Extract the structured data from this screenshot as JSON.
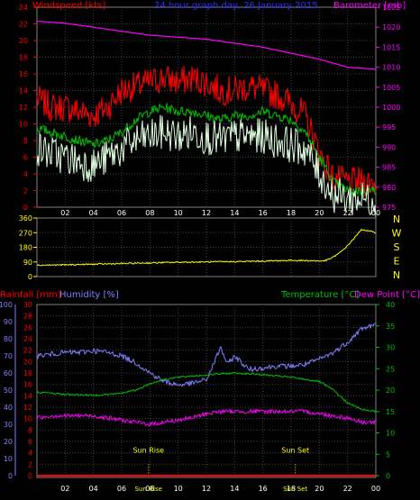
{
  "chart_data": [
    {
      "type": "line",
      "title": "24 hour graph day, 26 January 2015",
      "x_tick_labels": [
        "02",
        "04",
        "06",
        "08",
        "10",
        "12",
        "14",
        "16",
        "18",
        "20",
        "22",
        "00"
      ],
      "x_range_hours": [
        0,
        24
      ],
      "left_axis": {
        "label": "Windspeed [kts]",
        "ylim": [
          0,
          24
        ],
        "ticks": [
          0,
          2,
          4,
          6,
          8,
          10,
          12,
          14,
          16,
          18,
          20,
          22,
          24
        ]
      },
      "right_axis": {
        "label": "Barometer [mb]",
        "ylim": [
          975,
          1025
        ],
        "ticks": [
          975,
          980,
          985,
          990,
          995,
          1000,
          1005,
          1010,
          1015,
          1020,
          1025
        ]
      },
      "grid": true,
      "series": [
        {
          "name": "Windspeed [kts]",
          "color": "#ff0000",
          "axis": "left",
          "noise": 1.8,
          "x": [
            0,
            1,
            2,
            3,
            4,
            5,
            6,
            7,
            8,
            9,
            10,
            11,
            12,
            13,
            14,
            15,
            16,
            17,
            18,
            19,
            20,
            21,
            22,
            23,
            24
          ],
          "y": [
            13,
            12,
            12,
            11.5,
            11,
            12,
            14,
            14.5,
            15,
            15.5,
            15,
            15.5,
            15,
            14,
            14,
            14.5,
            14,
            13.5,
            12.5,
            11,
            6.5,
            3.5,
            3,
            3,
            3
          ]
        },
        {
          "color": "#00c000",
          "axis": "left",
          "noise": 0.6,
          "x": [
            0,
            1,
            2,
            3,
            4,
            5,
            6,
            7,
            8,
            9,
            10,
            11,
            12,
            13,
            14,
            15,
            16,
            17,
            18,
            19,
            20,
            21,
            22,
            23,
            24
          ],
          "y": [
            9.5,
            9,
            8.5,
            8,
            7.5,
            8,
            9,
            10.5,
            11.5,
            12,
            11.5,
            11.5,
            11,
            10.5,
            11,
            11,
            11.5,
            11,
            10.5,
            9,
            6,
            3,
            2,
            2,
            2
          ]
        },
        {
          "color": "#e0ffe0",
          "axis": "left",
          "noise": 2.2,
          "x": [
            0,
            1,
            2,
            3,
            4,
            5,
            6,
            7,
            8,
            9,
            10,
            11,
            12,
            13,
            14,
            15,
            16,
            17,
            18,
            19,
            20,
            21,
            22,
            23,
            24
          ],
          "y": [
            7,
            6.5,
            6,
            5.5,
            5,
            6,
            7,
            8,
            8.5,
            9,
            8.5,
            9,
            8.5,
            8,
            8.5,
            8.5,
            8.5,
            8,
            7.5,
            7,
            4,
            1.5,
            1,
            1,
            1
          ]
        },
        {
          "name": "Barometer [mb]",
          "color": "#ff00ff",
          "axis": "right",
          "noise": 0,
          "x": [
            0,
            2,
            4,
            6,
            8,
            10,
            12,
            14,
            16,
            18,
            20,
            22,
            24
          ],
          "y": [
            1021.5,
            1021,
            1020,
            1019,
            1018,
            1017.5,
            1017,
            1016,
            1015,
            1013.5,
            1012,
            1010,
            1009.5
          ]
        }
      ]
    },
    {
      "type": "line",
      "left_axis": {
        "ylim": [
          0,
          360
        ],
        "ticks": [
          0,
          90,
          180,
          270,
          360
        ]
      },
      "compass_labels": [
        "N",
        "W",
        "S",
        "E",
        "N"
      ],
      "grid": true,
      "series": [
        {
          "color": "#ffff00",
          "noise": 4,
          "x": [
            0,
            2,
            4,
            6,
            8,
            10,
            12,
            14,
            16,
            18,
            19.5,
            20,
            20.5,
            21,
            21.5,
            22,
            22.5,
            23,
            24
          ],
          "y": [
            70,
            72,
            76,
            80,
            84,
            88,
            90,
            92,
            95,
            100,
            98,
            95,
            100,
            120,
            150,
            190,
            240,
            290,
            270
          ]
        }
      ]
    },
    {
      "type": "line",
      "left_axis_rain": {
        "label": "Rainfall [mm]",
        "ylim": [
          0,
          30
        ],
        "ticks": [
          0,
          2,
          4,
          6,
          8,
          10,
          12,
          14,
          16,
          18,
          20,
          22,
          24,
          26,
          28,
          30
        ]
      },
      "left_axis_humidity": {
        "label": "Humidity [%]",
        "ylim": [
          0,
          100
        ],
        "ticks": [
          0,
          10,
          20,
          30,
          40,
          50,
          60,
          70,
          80,
          90,
          100
        ]
      },
      "right_axis": {
        "label": "Temperature [°C]",
        "label2": "Dew Point [°C]",
        "ylim": [
          0,
          40
        ],
        "ticks": [
          0,
          5,
          10,
          15,
          20,
          25,
          30,
          35,
          40
        ]
      },
      "annotations": [
        {
          "text": "Sun Rise",
          "x_hour": 7.9
        },
        {
          "text": "Sun Set",
          "x_hour": 18.3
        }
      ],
      "grid": true,
      "series": [
        {
          "name": "Humidity [%]",
          "color": "#8080ff",
          "axis": "humidity",
          "noise": 1.5,
          "x": [
            0,
            1,
            2,
            3,
            4,
            5,
            6,
            7,
            8,
            9,
            10,
            11,
            12,
            12.5,
            13,
            13.5,
            14,
            14.5,
            15,
            16,
            17,
            18,
            19,
            20,
            21,
            22,
            23,
            24
          ],
          "y": [
            70,
            71,
            72,
            72,
            73,
            72,
            70,
            66,
            60,
            55,
            53,
            54,
            56,
            65,
            75,
            65,
            70,
            66,
            62,
            63,
            64,
            64,
            65,
            68,
            72,
            78,
            86,
            88
          ]
        },
        {
          "name": "Temperature [°C]",
          "color": "#00c000",
          "axis": "temp",
          "noise": 0.2,
          "x": [
            0,
            1,
            2,
            3,
            4,
            5,
            6,
            7,
            8,
            9,
            10,
            11,
            12,
            13,
            14,
            15,
            16,
            17,
            18,
            19,
            20,
            21,
            22,
            23,
            24
          ],
          "y": [
            19.5,
            19.3,
            19,
            18.9,
            18.8,
            19,
            19.3,
            20,
            21.5,
            22.5,
            23,
            23.3,
            23.5,
            23.8,
            24,
            23.8,
            23.6,
            23.3,
            23,
            22.5,
            22,
            20,
            17,
            15.5,
            15
          ]
        },
        {
          "name": "Dew Point [°C]",
          "color": "#ff00ff",
          "axis": "temp",
          "noise": 0.5,
          "x": [
            0,
            1,
            2,
            3,
            4,
            5,
            6,
            7,
            8,
            9,
            10,
            11,
            12,
            13,
            14,
            15,
            16,
            17,
            18,
            19,
            20,
            21,
            22,
            23,
            24
          ],
          "y": [
            13.5,
            14,
            14,
            14,
            14,
            13.5,
            13,
            12.5,
            12,
            12.5,
            13,
            13.5,
            14.5,
            15,
            15,
            15,
            15,
            15,
            15,
            15,
            14.5,
            14,
            13.5,
            12.5,
            12.5
          ]
        },
        {
          "name": "Rainfall [mm]",
          "color": "#ff0000",
          "axis": "rain",
          "noise": 0,
          "x": [
            0,
            24
          ],
          "y": [
            0,
            0
          ]
        }
      ]
    }
  ]
}
